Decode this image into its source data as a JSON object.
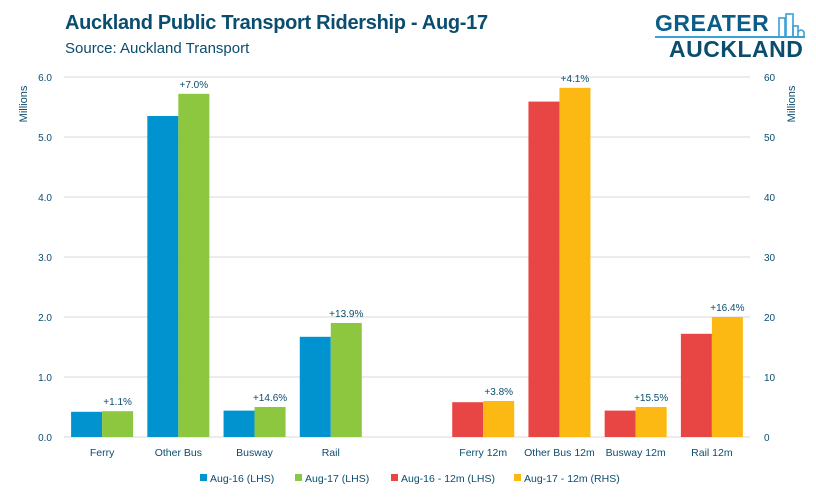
{
  "header": {
    "title": "Auckland Public Transport Ridership - Aug-17",
    "subtitle": "Source: Auckland Transport"
  },
  "logo": {
    "line1": "GREATER",
    "line2": "AUCKLAND"
  },
  "colors": {
    "aug16": "#0093d0",
    "aug17": "#8dc63f",
    "aug16_12m": "#e84545",
    "aug17_12m": "#fdb913",
    "text": "#0b4d6e",
    "grid": "#d9d9d9"
  },
  "chart_data": {
    "type": "bar",
    "title": "Auckland Public Transport Ridership - Aug-17",
    "subtitle": "Source: Auckland Transport",
    "ylabel_left": "Millions",
    "ylabel_right": "Millions",
    "ylim_left": [
      0,
      6
    ],
    "ylim_right": [
      0,
      60
    ],
    "yticks_left": [
      "0.0",
      "1.0",
      "2.0",
      "3.0",
      "4.0",
      "5.0",
      "6.0"
    ],
    "yticks_right": [
      "0",
      "10",
      "20",
      "30",
      "40",
      "50",
      "60"
    ],
    "grid": true,
    "legend_position": "bottom",
    "groups": [
      {
        "category": "Ferry",
        "axis": "left",
        "series": [
          "Aug-16 (LHS)",
          "Aug-17 (LHS)"
        ],
        "values": [
          0.42,
          0.43
        ],
        "label": "+1.1%"
      },
      {
        "category": "Other Bus",
        "axis": "left",
        "series": [
          "Aug-16 (LHS)",
          "Aug-17 (LHS)"
        ],
        "values": [
          5.35,
          5.72
        ],
        "label": "+7.0%"
      },
      {
        "category": "Busway",
        "axis": "left",
        "series": [
          "Aug-16 (LHS)",
          "Aug-17 (LHS)"
        ],
        "values": [
          0.44,
          0.5
        ],
        "label": "+14.6%"
      },
      {
        "category": "Rail",
        "axis": "left",
        "series": [
          "Aug-16 (LHS)",
          "Aug-17 (LHS)"
        ],
        "values": [
          1.67,
          1.9
        ],
        "label": "+13.9%"
      },
      {
        "category": "",
        "axis": "left",
        "series": [],
        "values": [],
        "label": ""
      },
      {
        "category": "Ferry 12m",
        "axis": "right",
        "series": [
          "Aug-16 - 12m (LHS)",
          "Aug-17 - 12m (RHS)"
        ],
        "values": [
          5.8,
          6.0
        ],
        "label": "+3.8%"
      },
      {
        "category": "Other Bus 12m",
        "axis": "right",
        "series": [
          "Aug-16 - 12m (LHS)",
          "Aug-17 - 12m (RHS)"
        ],
        "values": [
          55.9,
          58.2
        ],
        "label": "+4.1%"
      },
      {
        "category": "Busway 12m",
        "axis": "right",
        "series": [
          "Aug-16 - 12m (LHS)",
          "Aug-17 - 12m (RHS)"
        ],
        "values": [
          4.4,
          5.0
        ],
        "label": "+15.5%"
      },
      {
        "category": "Rail 12m",
        "axis": "right",
        "series": [
          "Aug-16 - 12m (LHS)",
          "Aug-17 - 12m (RHS)"
        ],
        "values": [
          17.2,
          20.0
        ],
        "label": "+16.4%"
      }
    ],
    "legend": [
      {
        "name": "Aug-16 (LHS)",
        "color": "#0093d0"
      },
      {
        "name": "Aug-17 (LHS)",
        "color": "#8dc63f"
      },
      {
        "name": "Aug-16 - 12m (LHS)",
        "color": "#e84545"
      },
      {
        "name": "Aug-17 - 12m (RHS)",
        "color": "#fdb913"
      }
    ]
  }
}
